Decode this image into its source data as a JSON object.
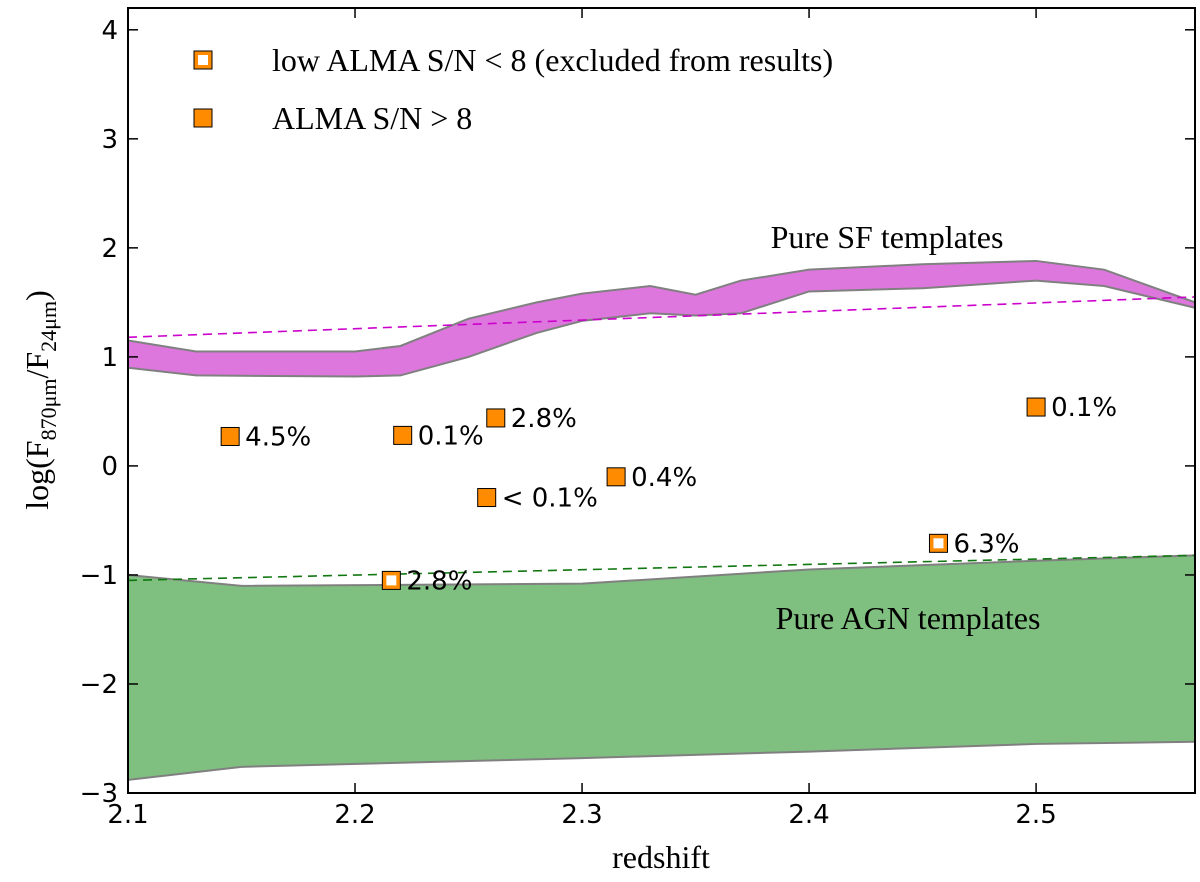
{
  "chart_data": {
    "type": "scatter",
    "xlabel": "redshift",
    "ylabel": [
      "log(F",
      "870μm",
      "/F",
      "24μm",
      ")"
    ],
    "xlim": [
      2.1,
      2.57
    ],
    "ylim": [
      -3,
      4.2
    ],
    "xticks": [
      2.1,
      2.2,
      2.3,
      2.4,
      2.5
    ],
    "yticks": [
      {
        "value": -3,
        "label": "−3"
      },
      {
        "value": -2,
        "label": "−2"
      },
      {
        "value": -1,
        "label": "−1"
      },
      0,
      1,
      2,
      3,
      4
    ],
    "bands": [
      {
        "annotation": "Pure SF templates",
        "color": "#dd77dd",
        "x": [
          2.1,
          2.13,
          2.2,
          2.22,
          2.25,
          2.28,
          2.3,
          2.33,
          2.35,
          2.37,
          2.4,
          2.45,
          2.5,
          2.53,
          2.57
        ],
        "upper": [
          1.15,
          1.05,
          1.05,
          1.1,
          1.35,
          1.5,
          1.58,
          1.65,
          1.57,
          1.7,
          1.8,
          1.85,
          1.88,
          1.8,
          1.5
        ],
        "lower": [
          0.9,
          0.83,
          0.82,
          0.83,
          1.0,
          1.22,
          1.33,
          1.4,
          1.38,
          1.4,
          1.6,
          1.63,
          1.7,
          1.65,
          1.45
        ]
      },
      {
        "annotation": "Pure AGN templates",
        "color": "#7fbf7f",
        "x": [
          2.1,
          2.15,
          2.3,
          2.4,
          2.5,
          2.57
        ],
        "upper": [
          -1.0,
          -1.1,
          -1.08,
          -0.95,
          -0.87,
          -0.82
        ],
        "lower": [
          -2.88,
          -2.76,
          -2.68,
          -2.62,
          -2.55,
          -2.53
        ]
      }
    ],
    "lines": [
      {
        "color": "#cc00cc",
        "x": [
          2.1,
          2.57
        ],
        "y": [
          1.18,
          1.55
        ]
      },
      {
        "color": "#117711",
        "x": [
          2.1,
          2.57
        ],
        "y": [
          -1.05,
          -0.82
        ]
      }
    ],
    "series": [
      {
        "name": "low ALMA S/N < 8 (excluded from results)",
        "style": "open",
        "color": "#ff8c00",
        "x": [
          2.216,
          2.457
        ],
        "values": [
          -1.05,
          -0.71
        ],
        "point_labels": [
          "2.8%",
          "6.3%"
        ]
      },
      {
        "name": "ALMA S/N > 8",
        "style": "filled",
        "color": "#ff8c00",
        "x": [
          2.145,
          2.221,
          2.262,
          2.258,
          2.315,
          2.5
        ],
        "values": [
          0.27,
          0.28,
          0.44,
          -0.29,
          -0.1,
          0.54
        ],
        "point_labels": [
          "4.5%",
          "0.1%",
          "2.8%",
          "< 0.1%",
          "0.4%",
          "0.1%"
        ]
      }
    ]
  }
}
